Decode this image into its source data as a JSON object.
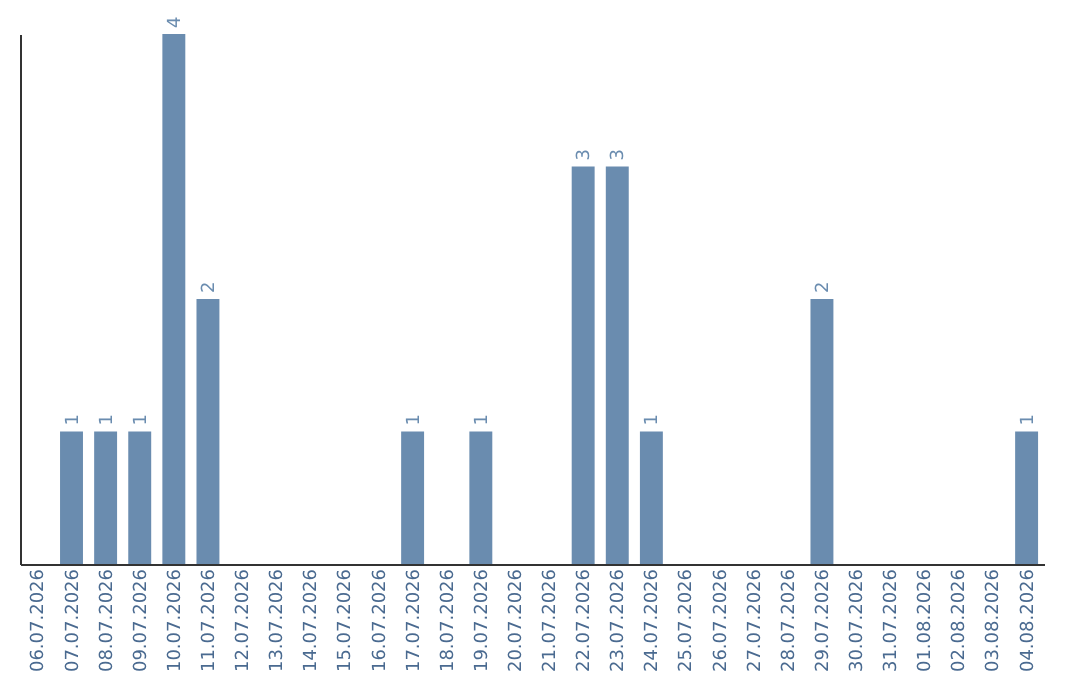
{
  "chart_data": {
    "type": "bar",
    "categories": [
      "06.07.2026",
      "07.07.2026",
      "08.07.2026",
      "09.07.2026",
      "10.07.2026",
      "11.07.2026",
      "12.07.2026",
      "13.07.2026",
      "14.07.2026",
      "15.07.2026",
      "16.07.2026",
      "17.07.2026",
      "18.07.2026",
      "19.07.2026",
      "20.07.2026",
      "21.07.2026",
      "22.07.2026",
      "23.07.2026",
      "24.07.2026",
      "25.07.2026",
      "26.07.2026",
      "27.07.2026",
      "28.07.2026",
      "29.07.2026",
      "30.07.2026",
      "31.07.2026",
      "01.08.2026",
      "02.08.2026",
      "03.08.2026",
      "04.08.2026"
    ],
    "values": [
      null,
      1,
      1,
      1,
      4,
      2,
      null,
      null,
      null,
      null,
      null,
      1,
      null,
      1,
      null,
      null,
      3,
      3,
      1,
      null,
      null,
      null,
      null,
      2,
      null,
      null,
      null,
      null,
      null,
      1
    ],
    "color": "#6a8caf",
    "data_labels": true,
    "tick_labels": "x"
  }
}
